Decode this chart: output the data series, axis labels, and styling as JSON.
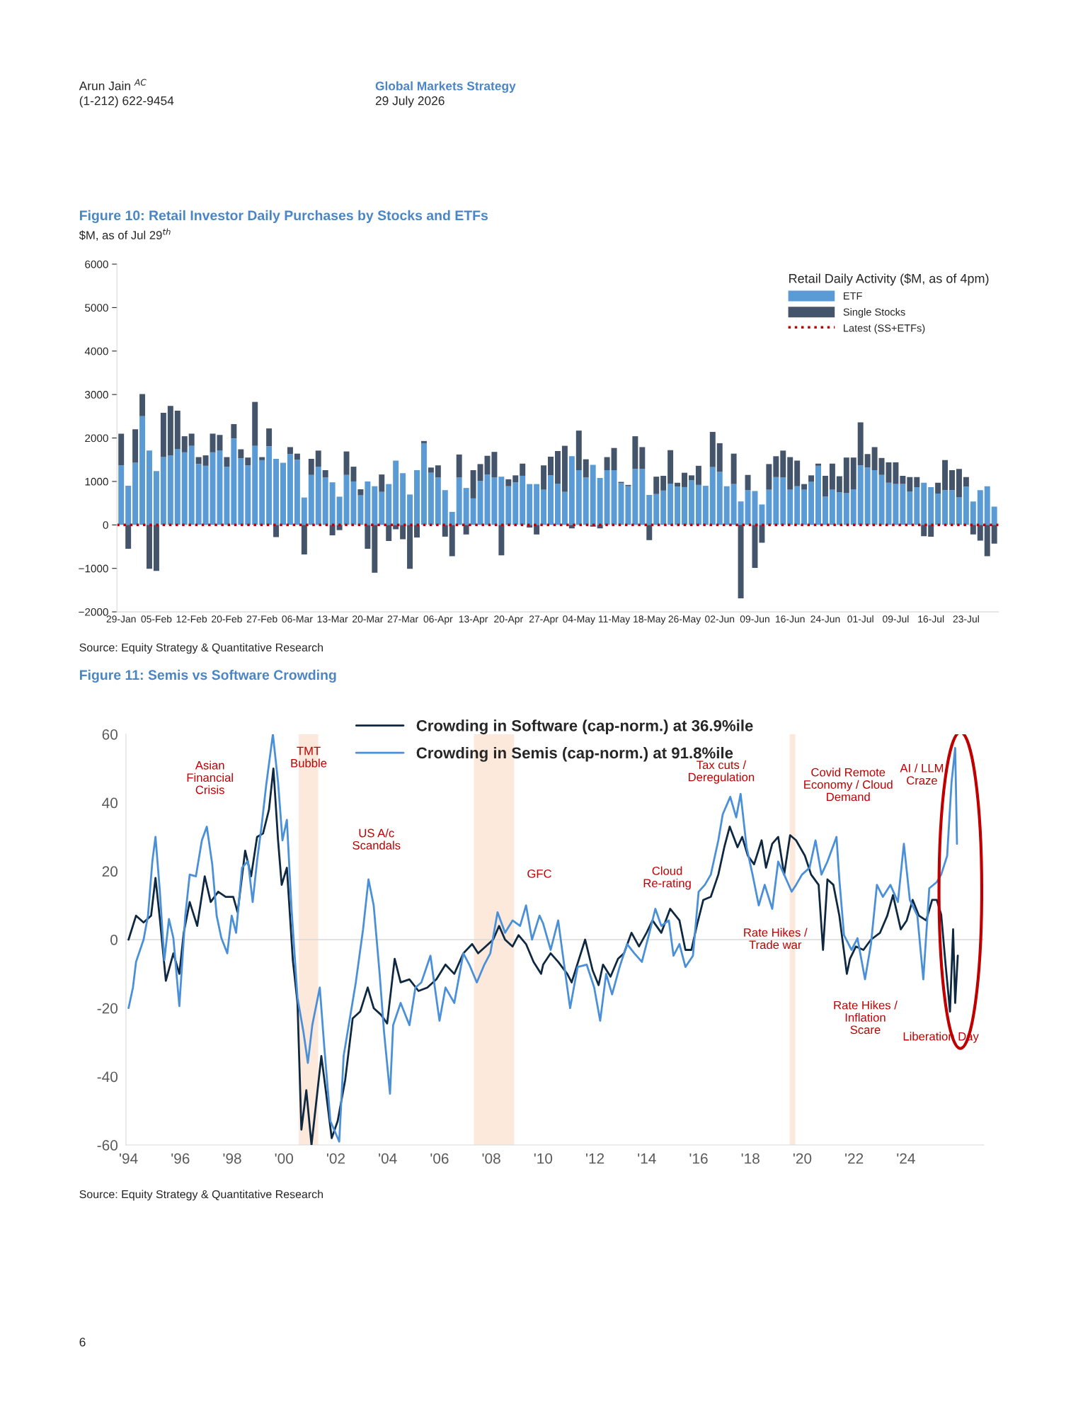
{
  "chart_data": [
    {
      "type": "bar",
      "title": "Figure 10: Retail Investor Daily Purchases by Stocks and ETFs",
      "subtitle": "$M, as of Jul 29$^{th}$",
      "categories": [
        "29-Jan",
        null,
        null,
        null,
        null,
        "05-Feb",
        null,
        null,
        null,
        null,
        "12-Feb",
        null,
        null,
        null,
        null,
        "20-Feb",
        null,
        null,
        null,
        null,
        "27-Feb",
        null,
        null,
        null,
        null,
        "06-Mar",
        null,
        null,
        null,
        null,
        "13-Mar",
        null,
        null,
        null,
        null,
        "20-Mar",
        null,
        null,
        null,
        null,
        "27-Mar",
        null,
        null,
        null,
        null,
        "06-Apr",
        null,
        null,
        null,
        null,
        "13-Apr",
        null,
        null,
        null,
        null,
        "20-Apr",
        null,
        null,
        null,
        null,
        "27-Apr",
        null,
        null,
        null,
        null,
        "04-May",
        null,
        null,
        null,
        null,
        "11-May",
        null,
        null,
        null,
        null,
        "18-May",
        null,
        null,
        null,
        null,
        "26-May",
        null,
        null,
        null,
        null,
        "02-Jun",
        null,
        null,
        null,
        null,
        "09-Jun",
        null,
        null,
        null,
        null,
        "16-Jun",
        null,
        null,
        null,
        null,
        "24-Jun",
        null,
        null,
        null,
        null,
        "01-Jul",
        null,
        null,
        null,
        null,
        "09-Jul",
        null,
        null,
        null,
        null,
        "16-Jul",
        null,
        null,
        null,
        null,
        "23-Jul",
        null,
        null,
        null,
        null
      ],
      "stacked": true,
      "series": [
        {
          "name": "ETF",
          "color": "#5b9bd5",
          "values": [
            1370,
            900,
            1430,
            2500,
            1710,
            1240,
            1560,
            1600,
            1750,
            1670,
            1820,
            1400,
            1360,
            1670,
            1710,
            1340,
            1990,
            1530,
            1370,
            1820,
            1490,
            1810,
            1520,
            1430,
            1630,
            1500,
            630,
            1150,
            1340,
            1090,
            980,
            650,
            1150,
            1000,
            680,
            1000,
            890,
            760,
            940,
            1480,
            1190,
            700,
            1260,
            1880,
            1200,
            1090,
            800,
            300,
            1090,
            850,
            610,
            1010,
            1160,
            1090,
            1110,
            890,
            980,
            1130,
            940,
            940,
            810,
            1140,
            950,
            760,
            1580,
            1260,
            1090,
            1380,
            1080,
            1260,
            1260,
            960,
            890,
            1290,
            1290,
            690,
            710,
            790,
            950,
            880,
            870,
            1030,
            920,
            900,
            1330,
            1220,
            890,
            940,
            540,
            800,
            780,
            470,
            810,
            1100,
            1090,
            810,
            890,
            810,
            990,
            1360,
            650,
            810,
            750,
            730,
            820,
            1370,
            1320,
            1260,
            1150,
            970,
            940,
            940,
            770,
            870,
            970,
            870,
            720,
            800,
            800,
            640,
            880,
            540,
            800,
            890,
            420
          ]
        },
        {
          "name": "Single Stocks",
          "color": "#44546a",
          "values": [
            730,
            -550,
            770,
            510,
            -1010,
            -1060,
            1020,
            1140,
            880,
            370,
            280,
            160,
            240,
            430,
            360,
            220,
            330,
            210,
            180,
            1010,
            70,
            410,
            -280,
            0,
            160,
            140,
            -680,
            370,
            370,
            170,
            -240,
            -120,
            540,
            340,
            140,
            -550,
            -1100,
            400,
            -370,
            -100,
            -330,
            -1010,
            -290,
            50,
            120,
            280,
            -270,
            -720,
            530,
            -220,
            650,
            390,
            430,
            590,
            -700,
            160,
            160,
            280,
            -60,
            -220,
            560,
            430,
            750,
            1060,
            -80,
            910,
            420,
            -40,
            -80,
            300,
            510,
            30,
            30,
            750,
            500,
            -350,
            400,
            340,
            770,
            90,
            330,
            110,
            440,
            0,
            810,
            660,
            0,
            700,
            -1690,
            350,
            -990,
            -410,
            590,
            480,
            620,
            750,
            590,
            130,
            150,
            50,
            480,
            600,
            370,
            820,
            730,
            990,
            310,
            530,
            390,
            470,
            500,
            190,
            330,
            230,
            -260,
            -270,
            250,
            690,
            460,
            650,
            220,
            -220,
            -360,
            -720,
            -430
          ]
        }
      ],
      "ref_lines": [
        {
          "axis": "y",
          "value": 0,
          "label": "Latest (SS+ETFs)",
          "color": "#c00000",
          "line_style": "dotted"
        }
      ],
      "ylim": [
        -2000,
        6000
      ],
      "yticks": [
        {
          "value": -2000,
          "label": "−2000"
        },
        {
          "value": -1000,
          "label": "−1000"
        },
        0,
        1000,
        2000,
        3000,
        4000,
        5000,
        6000
      ],
      "legend": "top right",
      "legend_title": "Retail Daily Activity ($M, as of 4pm)",
      "annotations": [
        "Arun Jain $^{AC}$",
        "(1-212) 622-9454",
        "Global Markets Strategy",
        "29 July 2026",
        "Source: Equity Strategy & Quantitative Research",
        "6"
      ]
    },
    {
      "type": "line",
      "title": "Figure 11: Semis vs Software Crowding",
      "series": [
        {
          "name": "Crowding in Software (cap-norm.) at 36.9%ile",
          "color": "#0e2841",
          "x": [
            1994.0,
            1994.29,
            1994.58,
            1994.87,
            1995.04,
            1995.21,
            1995.44,
            1995.73,
            1995.96,
            1996.13,
            1996.36,
            1996.65,
            1996.94,
            1997.17,
            1997.46,
            1997.75,
            1998.04,
            1998.21,
            1998.5,
            1998.73,
            1998.96,
            1999.19,
            1999.42,
            1999.59,
            1999.77,
            1999.91,
            2000.11,
            2000.34,
            2000.52,
            2000.67,
            2000.86,
            2001.06,
            2001.44,
            2001.61,
            2001.84,
            2002.07,
            2002.36,
            2002.65,
            2002.94,
            2003.23,
            2003.46,
            2003.75,
            2003.98,
            2004.27,
            2004.5,
            2004.84,
            2005.19,
            2005.53,
            2005.88,
            2006.23,
            2006.57,
            2006.92,
            2007.26,
            2007.49,
            2007.78,
            2008.07,
            2008.3,
            2008.53,
            2008.82,
            2009.05,
            2009.34,
            2009.63,
            2009.92,
            2010.0,
            2010.29,
            2010.58,
            2010.93,
            2011.1,
            2011.62,
            2011.91,
            2012.14,
            2012.31,
            2012.6,
            2012.89,
            2013.12,
            2013.41,
            2013.7,
            2013.99,
            2014.22,
            2014.56,
            2014.9,
            2015.26,
            2015.49,
            2015.72,
            2015.95,
            2016.18,
            2016.47,
            2016.76,
            2016.99,
            2017.2,
            2017.5,
            2017.68,
            2017.9,
            2018.14,
            2018.43,
            2018.6,
            2018.84,
            2019.07,
            2019.3,
            2019.53,
            2019.76,
            2020.1,
            2020.34,
            2020.63,
            2020.8,
            2020.97,
            2021.2,
            2021.43,
            2021.72,
            2021.84,
            2022.07,
            2022.36,
            2022.65,
            2023.0,
            2023.28,
            2023.5,
            2023.8,
            2024.03,
            2024.26,
            2024.5,
            2024.78,
            2025.01,
            2025.19,
            2025.36,
            2025.53,
            2025.7,
            2025.82,
            2025.9,
            2026.0
          ],
          "values": [
            0,
            7,
            5,
            7,
            18,
            6,
            -12,
            -4,
            -10,
            2,
            11,
            4,
            18.5,
            11,
            14,
            12.5,
            12.5,
            8,
            26,
            18.5,
            30,
            31,
            38,
            50,
            29,
            16,
            21,
            -6,
            -18.5,
            -55.5,
            -44,
            -60,
            -34,
            -44,
            -58,
            -53,
            -41,
            -23,
            -21,
            -14,
            -20,
            -22,
            -24.5,
            -5.6,
            -12.5,
            -11.6,
            -15,
            -14,
            -11.6,
            -7.3,
            -10,
            -4,
            -1.3,
            -4,
            -2,
            0,
            4,
            0,
            -2,
            1.3,
            -1.3,
            -6.5,
            -10,
            -7.3,
            -4,
            -6.5,
            -10,
            -12.5,
            0,
            -9,
            -13.3,
            -7.3,
            -10.8,
            -5.6,
            -4,
            2,
            -2,
            2,
            5.6,
            2,
            9,
            5.6,
            -3,
            -3,
            4.7,
            11.6,
            12.5,
            19,
            27,
            33,
            27,
            30,
            24.5,
            22,
            29,
            21,
            28,
            30,
            19,
            30.5,
            29,
            24.5,
            19,
            16,
            -3,
            17.6,
            16,
            7,
            -10,
            -5.6,
            -2,
            -3,
            0,
            2,
            7,
            13,
            3,
            5.6,
            11.6,
            7,
            5.6,
            11.6,
            11.6,
            7.3,
            -7.3,
            -21,
            3,
            -18.5,
            -4.7
          ]
        },
        {
          "name": "Crowding in Semis (cap-norm.) at 91.8%ile",
          "color": "#4a90d9",
          "x": [
            1994.0,
            1994.17,
            1994.29,
            1994.58,
            1994.75,
            1994.92,
            1995.04,
            1995.21,
            1995.38,
            1995.56,
            1995.73,
            1995.96,
            1996.19,
            1996.36,
            1996.6,
            1996.83,
            1997.02,
            1997.23,
            1997.4,
            1997.58,
            1997.81,
            1997.98,
            1998.15,
            1998.38,
            1998.61,
            1998.79,
            1998.96,
            1999.13,
            1999.31,
            1999.57,
            1999.77,
            1999.94,
            2000.11,
            2000.29,
            2000.52,
            2000.75,
            2000.92,
            2001.09,
            2001.38,
            2001.55,
            2001.79,
            2002.13,
            2002.3,
            2002.54,
            2002.77,
            2003.05,
            2003.26,
            2003.46,
            2003.69,
            2003.86,
            2004.09,
            2004.21,
            2004.5,
            2004.84,
            2005.07,
            2005.3,
            2005.65,
            2006.0,
            2006.23,
            2006.57,
            2006.92,
            2007.15,
            2007.44,
            2007.73,
            2007.96,
            2008.24,
            2008.53,
            2008.82,
            2009.11,
            2009.34,
            2009.57,
            2009.86,
            2010.0,
            2010.29,
            2010.58,
            2010.75,
            2011.04,
            2011.33,
            2011.68,
            2011.97,
            2012.2,
            2012.43,
            2012.66,
            2012.95,
            2013.24,
            2013.52,
            2013.81,
            2014.1,
            2014.33,
            2014.56,
            2014.85,
            2015.03,
            2015.26,
            2015.49,
            2015.78,
            2016.0,
            2016.24,
            2016.47,
            2016.76,
            2016.93,
            2017.22,
            2017.45,
            2017.62,
            2017.85,
            2018.08,
            2018.32,
            2018.55,
            2018.84,
            2019.07,
            2019.3,
            2019.59,
            2019.76,
            2019.99,
            2020.28,
            2020.51,
            2020.74,
            2020.97,
            2021.32,
            2021.43,
            2021.61,
            2021.9,
            2022.13,
            2022.42,
            2022.65,
            2022.88,
            2023.11,
            2023.4,
            2023.69,
            2023.92,
            2024.15,
            2024.44,
            2024.67,
            2024.9,
            2025.19,
            2025.36,
            2025.59,
            2025.76,
            2025.9,
            2025.97
          ],
          "values": [
            -20,
            -14,
            -6.5,
            0,
            7,
            23,
            30,
            14,
            -6,
            6,
            0.5,
            -19.4,
            7,
            19,
            18.5,
            29,
            33,
            22,
            7,
            0.5,
            -4,
            7,
            2,
            21,
            23,
            11,
            23,
            33,
            45,
            60,
            46,
            29,
            35,
            9,
            -17,
            -27,
            -36,
            -25,
            -14,
            -31,
            -53,
            -59,
            -34,
            -23,
            -12.5,
            3,
            17.6,
            10,
            -10,
            -27,
            -45,
            -25,
            -18.5,
            -25,
            -14,
            -12.5,
            -4.7,
            -23.7,
            -14,
            -18.5,
            -4,
            -7.3,
            -12.5,
            -7.3,
            -4,
            8,
            2,
            5.6,
            4,
            10,
            0,
            7,
            4.7,
            -3,
            5.6,
            -4,
            -20,
            -8,
            -7.3,
            -14,
            -23.7,
            -10,
            -16,
            -8,
            -1.3,
            -4,
            -6.5,
            2,
            9,
            4,
            5.6,
            -4.7,
            -1.3,
            -8,
            -4.7,
            14,
            16,
            19,
            29,
            36.6,
            41.7,
            35.7,
            42.6,
            27,
            19,
            10,
            16,
            9,
            22.8,
            19,
            14,
            16,
            19,
            21,
            29,
            19,
            22.8,
            30,
            17.6,
            1.3,
            -3,
            0.4,
            -11.6,
            -1.3,
            16,
            12.5,
            16,
            11,
            28,
            11.6,
            7,
            -11.6,
            15,
            16.8,
            19,
            24.5,
            46,
            56,
            28
          ]
        }
      ],
      "xlim": [
        1993.9,
        2027.0
      ],
      "xticks": [
        {
          "value": 1994,
          "label": "'94"
        },
        {
          "value": 1996,
          "label": "'96"
        },
        {
          "value": 1998,
          "label": "'98"
        },
        {
          "value": 2000,
          "label": "'00"
        },
        {
          "value": 2002,
          "label": "'02"
        },
        {
          "value": 2004,
          "label": "'04"
        },
        {
          "value": 2006,
          "label": "'06"
        },
        {
          "value": 2008,
          "label": "'08"
        },
        {
          "value": 2010,
          "label": "'10"
        },
        {
          "value": 2012,
          "label": "'12"
        },
        {
          "value": 2014,
          "label": "'14"
        },
        {
          "value": 2016,
          "label": "'16"
        },
        {
          "value": 2018,
          "label": "'18"
        },
        {
          "value": 2020,
          "label": "'20"
        },
        {
          "value": 2022,
          "label": "'22"
        },
        {
          "value": 2024,
          "label": "'24"
        }
      ],
      "ylim": [
        -60,
        60
      ],
      "yticks": [
        -60,
        -40,
        -20,
        0,
        20,
        40,
        60
      ],
      "bands": [
        {
          "axis": "x",
          "from": 2000.57,
          "to": 2001.32,
          "color": "#fde9dc"
        },
        {
          "axis": "x",
          "from": 2007.33,
          "to": 2008.88,
          "color": "#fde9dc"
        },
        {
          "axis": "x",
          "from": 2019.51,
          "to": 2019.73,
          "color": "#fde9dc"
        }
      ],
      "ref_lines": [
        {
          "axis": "y",
          "value": 0,
          "color": "#d9d9d9",
          "line_style": "solid"
        }
      ],
      "legend": "top",
      "annotations": [
        "Asian\nFinancial\nCrisis",
        "TMT\nBubble",
        "US A/c\nScandals",
        "GFC",
        "Cloud\nRe-rating",
        "Tax cuts /\nDeregulation",
        "Rate Hikes /\nTrade war",
        "Covid Remote\nEconomy / Cloud\nDemand",
        "AI / LLM\nCraze",
        "Rate Hikes /\nInflation\nScare",
        "Liberation Day",
        "Source: Equity Strategy & Quantitative Research"
      ]
    }
  ]
}
